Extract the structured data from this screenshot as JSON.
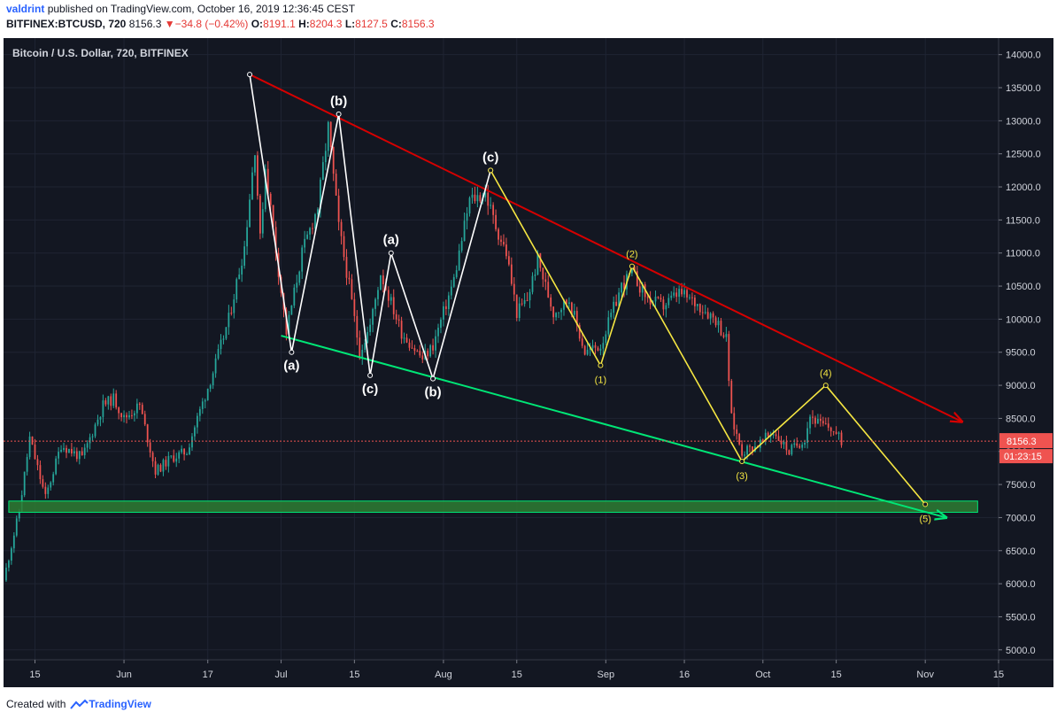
{
  "header": {
    "author": "valdrint",
    "published_text": "published on TradingView.com, October 16, 2019 12:36:45 CEST",
    "symbol": "BITFINEX:BTCUSD, 720",
    "last": "8156.3",
    "change_arrow": "▼",
    "change": "−34.8 (−0.42%)",
    "o_label": "O:",
    "o_val": "8191.1",
    "h_label": "H:",
    "h_val": "8204.3",
    "l_label": "L:",
    "l_val": "8127.5",
    "c_label": "C:",
    "c_val": "8156.3"
  },
  "footer": {
    "created_with": "Created with",
    "brand": "TradingView"
  },
  "colors": {
    "background": "#131722",
    "up": "#26a69a",
    "down": "#ef5350",
    "resistance": "#d50000",
    "support": "#00e676",
    "wave_white": "#ffffff",
    "wave_yellow": "#f5e642",
    "zone_fill": "#2e7d32",
    "zone_stroke": "#00e676",
    "last_price": "#ef5350",
    "axis_text": "#d1d4dc"
  },
  "chart_data": {
    "type": "candlestick",
    "title": "Bitcoin / U.S. Dollar, 720, BITFINEX",
    "ylim": [
      4850,
      14250
    ],
    "y_ticks": [
      5000,
      5500,
      6000,
      6500,
      7000,
      7500,
      8000,
      8500,
      9000,
      9500,
      10000,
      10500,
      11000,
      11500,
      12000,
      12500,
      13000,
      13500,
      14000
    ],
    "y_tick_labels": [
      "5000.0",
      "5500.0",
      "6000.0",
      "6500.0",
      "7000.0",
      "7500.0",
      "8000.0",
      "8500.0",
      "9000.0",
      "9500.0",
      "10000.0",
      "10500.0",
      "11000.0",
      "11500.0",
      "12000.0",
      "12500.0",
      "13000.0",
      "13500.0",
      "14000.0"
    ],
    "x_range": [
      "2019-05-09",
      "2019-11-15"
    ],
    "x_ticks": [
      {
        "date": "2019-05-15",
        "label": "15"
      },
      {
        "date": "2019-06-01",
        "label": "Jun"
      },
      {
        "date": "2019-06-17",
        "label": "17"
      },
      {
        "date": "2019-07-01",
        "label": "Jul"
      },
      {
        "date": "2019-07-15",
        "label": "15"
      },
      {
        "date": "2019-08-01",
        "label": "Aug"
      },
      {
        "date": "2019-08-15",
        "label": "15"
      },
      {
        "date": "2019-09-01",
        "label": "Sep"
      },
      {
        "date": "2019-09-16",
        "label": "16"
      },
      {
        "date": "2019-10-01",
        "label": "Oct"
      },
      {
        "date": "2019-10-15",
        "label": "15"
      },
      {
        "date": "2019-11-01",
        "label": "Nov"
      },
      {
        "date": "2019-11-15",
        "label": "15"
      }
    ],
    "last_price": {
      "value": 8156.3,
      "label": "8156.3",
      "countdown": "01:23:15"
    },
    "price_path": [
      [
        "2019-05-09",
        6050
      ],
      [
        "2019-05-12",
        7100
      ],
      [
        "2019-05-14",
        8200
      ],
      [
        "2019-05-17",
        7300
      ],
      [
        "2019-05-20",
        8100
      ],
      [
        "2019-05-24",
        7900
      ],
      [
        "2019-05-28",
        8700
      ],
      [
        "2019-05-30",
        8800
      ],
      [
        "2019-06-01",
        8500
      ],
      [
        "2019-06-04",
        8700
      ],
      [
        "2019-06-07",
        7700
      ],
      [
        "2019-06-10",
        7900
      ],
      [
        "2019-06-13",
        8000
      ],
      [
        "2019-06-15",
        8500
      ],
      [
        "2019-06-18",
        9200
      ],
      [
        "2019-06-21",
        10000
      ],
      [
        "2019-06-24",
        11100
      ],
      [
        "2019-06-26",
        12600
      ],
      [
        "2019-06-27",
        11200
      ],
      [
        "2019-06-28",
        12300
      ],
      [
        "2019-07-02",
        9800
      ],
      [
        "2019-07-05",
        11000
      ],
      [
        "2019-07-08",
        11700
      ],
      [
        "2019-07-10",
        12900
      ],
      [
        "2019-07-12",
        11400
      ],
      [
        "2019-07-14",
        10500
      ],
      [
        "2019-07-16",
        9500
      ],
      [
        "2019-07-18",
        9900
      ],
      [
        "2019-07-20",
        10700
      ],
      [
        "2019-07-24",
        9800
      ],
      [
        "2019-07-28",
        9400
      ],
      [
        "2019-07-30",
        9600
      ],
      [
        "2019-08-03",
        10600
      ],
      [
        "2019-08-06",
        11800
      ],
      [
        "2019-08-09",
        11900
      ],
      [
        "2019-08-11",
        11400
      ],
      [
        "2019-08-13",
        11000
      ],
      [
        "2019-08-15",
        10100
      ],
      [
        "2019-08-17",
        10300
      ],
      [
        "2019-08-19",
        10900
      ],
      [
        "2019-08-22",
        10100
      ],
      [
        "2019-08-25",
        10300
      ],
      [
        "2019-08-28",
        9500
      ],
      [
        "2019-08-31",
        9600
      ],
      [
        "2019-09-04",
        10500
      ],
      [
        "2019-09-06",
        10700
      ],
      [
        "2019-09-09",
        10300
      ],
      [
        "2019-09-12",
        10200
      ],
      [
        "2019-09-15",
        10400
      ],
      [
        "2019-09-19",
        10200
      ],
      [
        "2019-09-22",
        10000
      ],
      [
        "2019-09-24",
        9700
      ],
      [
        "2019-09-25",
        8500
      ],
      [
        "2019-09-27",
        8000
      ],
      [
        "2019-09-30",
        8100
      ],
      [
        "2019-10-03",
        8300
      ],
      [
        "2019-10-06",
        8000
      ],
      [
        "2019-10-09",
        8200
      ],
      [
        "2019-10-10",
        8550
      ],
      [
        "2019-10-12",
        8400
      ],
      [
        "2019-10-14",
        8350
      ],
      [
        "2019-10-16",
        8156
      ]
    ],
    "annotations": {
      "resistance_line": {
        "from": [
          "2019-06-25",
          13700
        ],
        "to": [
          "2019-11-08",
          8450
        ]
      },
      "support_line": {
        "from": [
          "2019-07-01",
          9750
        ],
        "to": [
          "2019-11-05",
          7000
        ]
      },
      "target_zone": {
        "from_date": "2019-05-10",
        "to_date": "2019-11-11",
        "low": 7080,
        "high": 7250
      },
      "white_wave": {
        "points": [
          [
            "2019-06-25",
            13700
          ],
          [
            "2019-07-03",
            9500
          ],
          [
            "2019-07-12",
            13100
          ],
          [
            "2019-07-18",
            9150
          ],
          [
            "2019-07-22",
            11000
          ],
          [
            "2019-07-30",
            9100
          ],
          [
            "2019-08-10",
            12250
          ]
        ],
        "labels": [
          {
            "point": 1,
            "text": "(a)",
            "pos": "below"
          },
          {
            "point": 2,
            "text": "(b)",
            "pos": "above"
          },
          {
            "point": 3,
            "text": "(c)",
            "pos": "below"
          },
          {
            "point": 4,
            "text": "(a)",
            "pos": "above"
          },
          {
            "point": 5,
            "text": "(b)",
            "pos": "below"
          },
          {
            "point": 6,
            "text": "(c)",
            "pos": "above"
          }
        ]
      },
      "yellow_wave": {
        "points": [
          [
            "2019-08-10",
            12250
          ],
          [
            "2019-08-31",
            9300
          ],
          [
            "2019-09-06",
            10800
          ],
          [
            "2019-09-27",
            7850
          ],
          [
            "2019-10-13",
            9000
          ],
          [
            "2019-11-01",
            7200
          ]
        ],
        "labels": [
          {
            "point": 1,
            "text": "(1)",
            "pos": "below"
          },
          {
            "point": 2,
            "text": "(2)",
            "pos": "above"
          },
          {
            "point": 3,
            "text": "(3)",
            "pos": "below"
          },
          {
            "point": 4,
            "text": "(4)",
            "pos": "above"
          },
          {
            "point": 5,
            "text": "(5)",
            "pos": "below"
          }
        ]
      }
    }
  }
}
